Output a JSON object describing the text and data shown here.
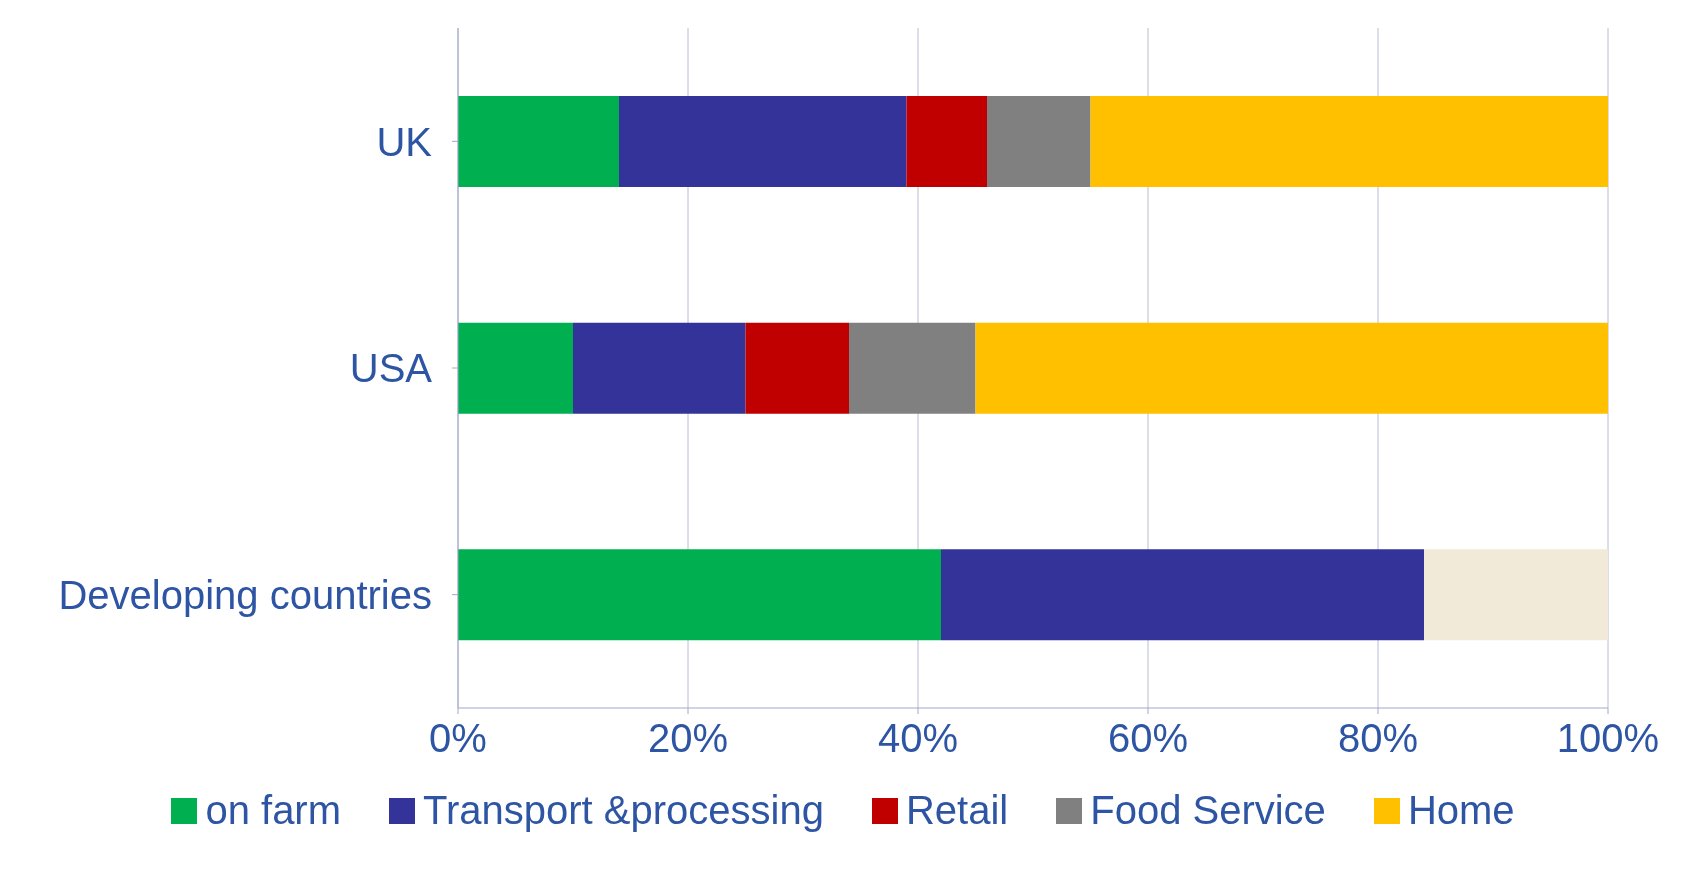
{
  "chart_data": {
    "type": "bar",
    "orientation": "horizontal",
    "stacked": true,
    "categories": [
      "UK",
      "USA",
      "Developing countries"
    ],
    "series": [
      {
        "name": "on farm",
        "color": "#00b050",
        "values": [
          14,
          10,
          42
        ]
      },
      {
        "name": "Transport &processing",
        "color": "#333399",
        "values": [
          25,
          15,
          42
        ]
      },
      {
        "name": "Retail",
        "color": "#c00000",
        "values": [
          7,
          9,
          null
        ]
      },
      {
        "name": "Food Service",
        "color": "#808080",
        "values": [
          9,
          11,
          null
        ]
      },
      {
        "name": "Home",
        "color": "#ffc000",
        "colors": [
          "#ffc000",
          "#ffc000",
          "#f2ead9"
        ],
        "values": [
          45,
          55,
          16
        ]
      }
    ],
    "xlim": [
      0,
      100
    ],
    "xticks": [
      {
        "value": 0,
        "label": "0%"
      },
      {
        "value": 20,
        "label": "20%"
      },
      {
        "value": 40,
        "label": "40%"
      },
      {
        "value": 60,
        "label": "60%"
      },
      {
        "value": 80,
        "label": "80%"
      },
      {
        "value": 100,
        "label": "100%"
      }
    ],
    "grid": "x",
    "legend": "bottom"
  }
}
